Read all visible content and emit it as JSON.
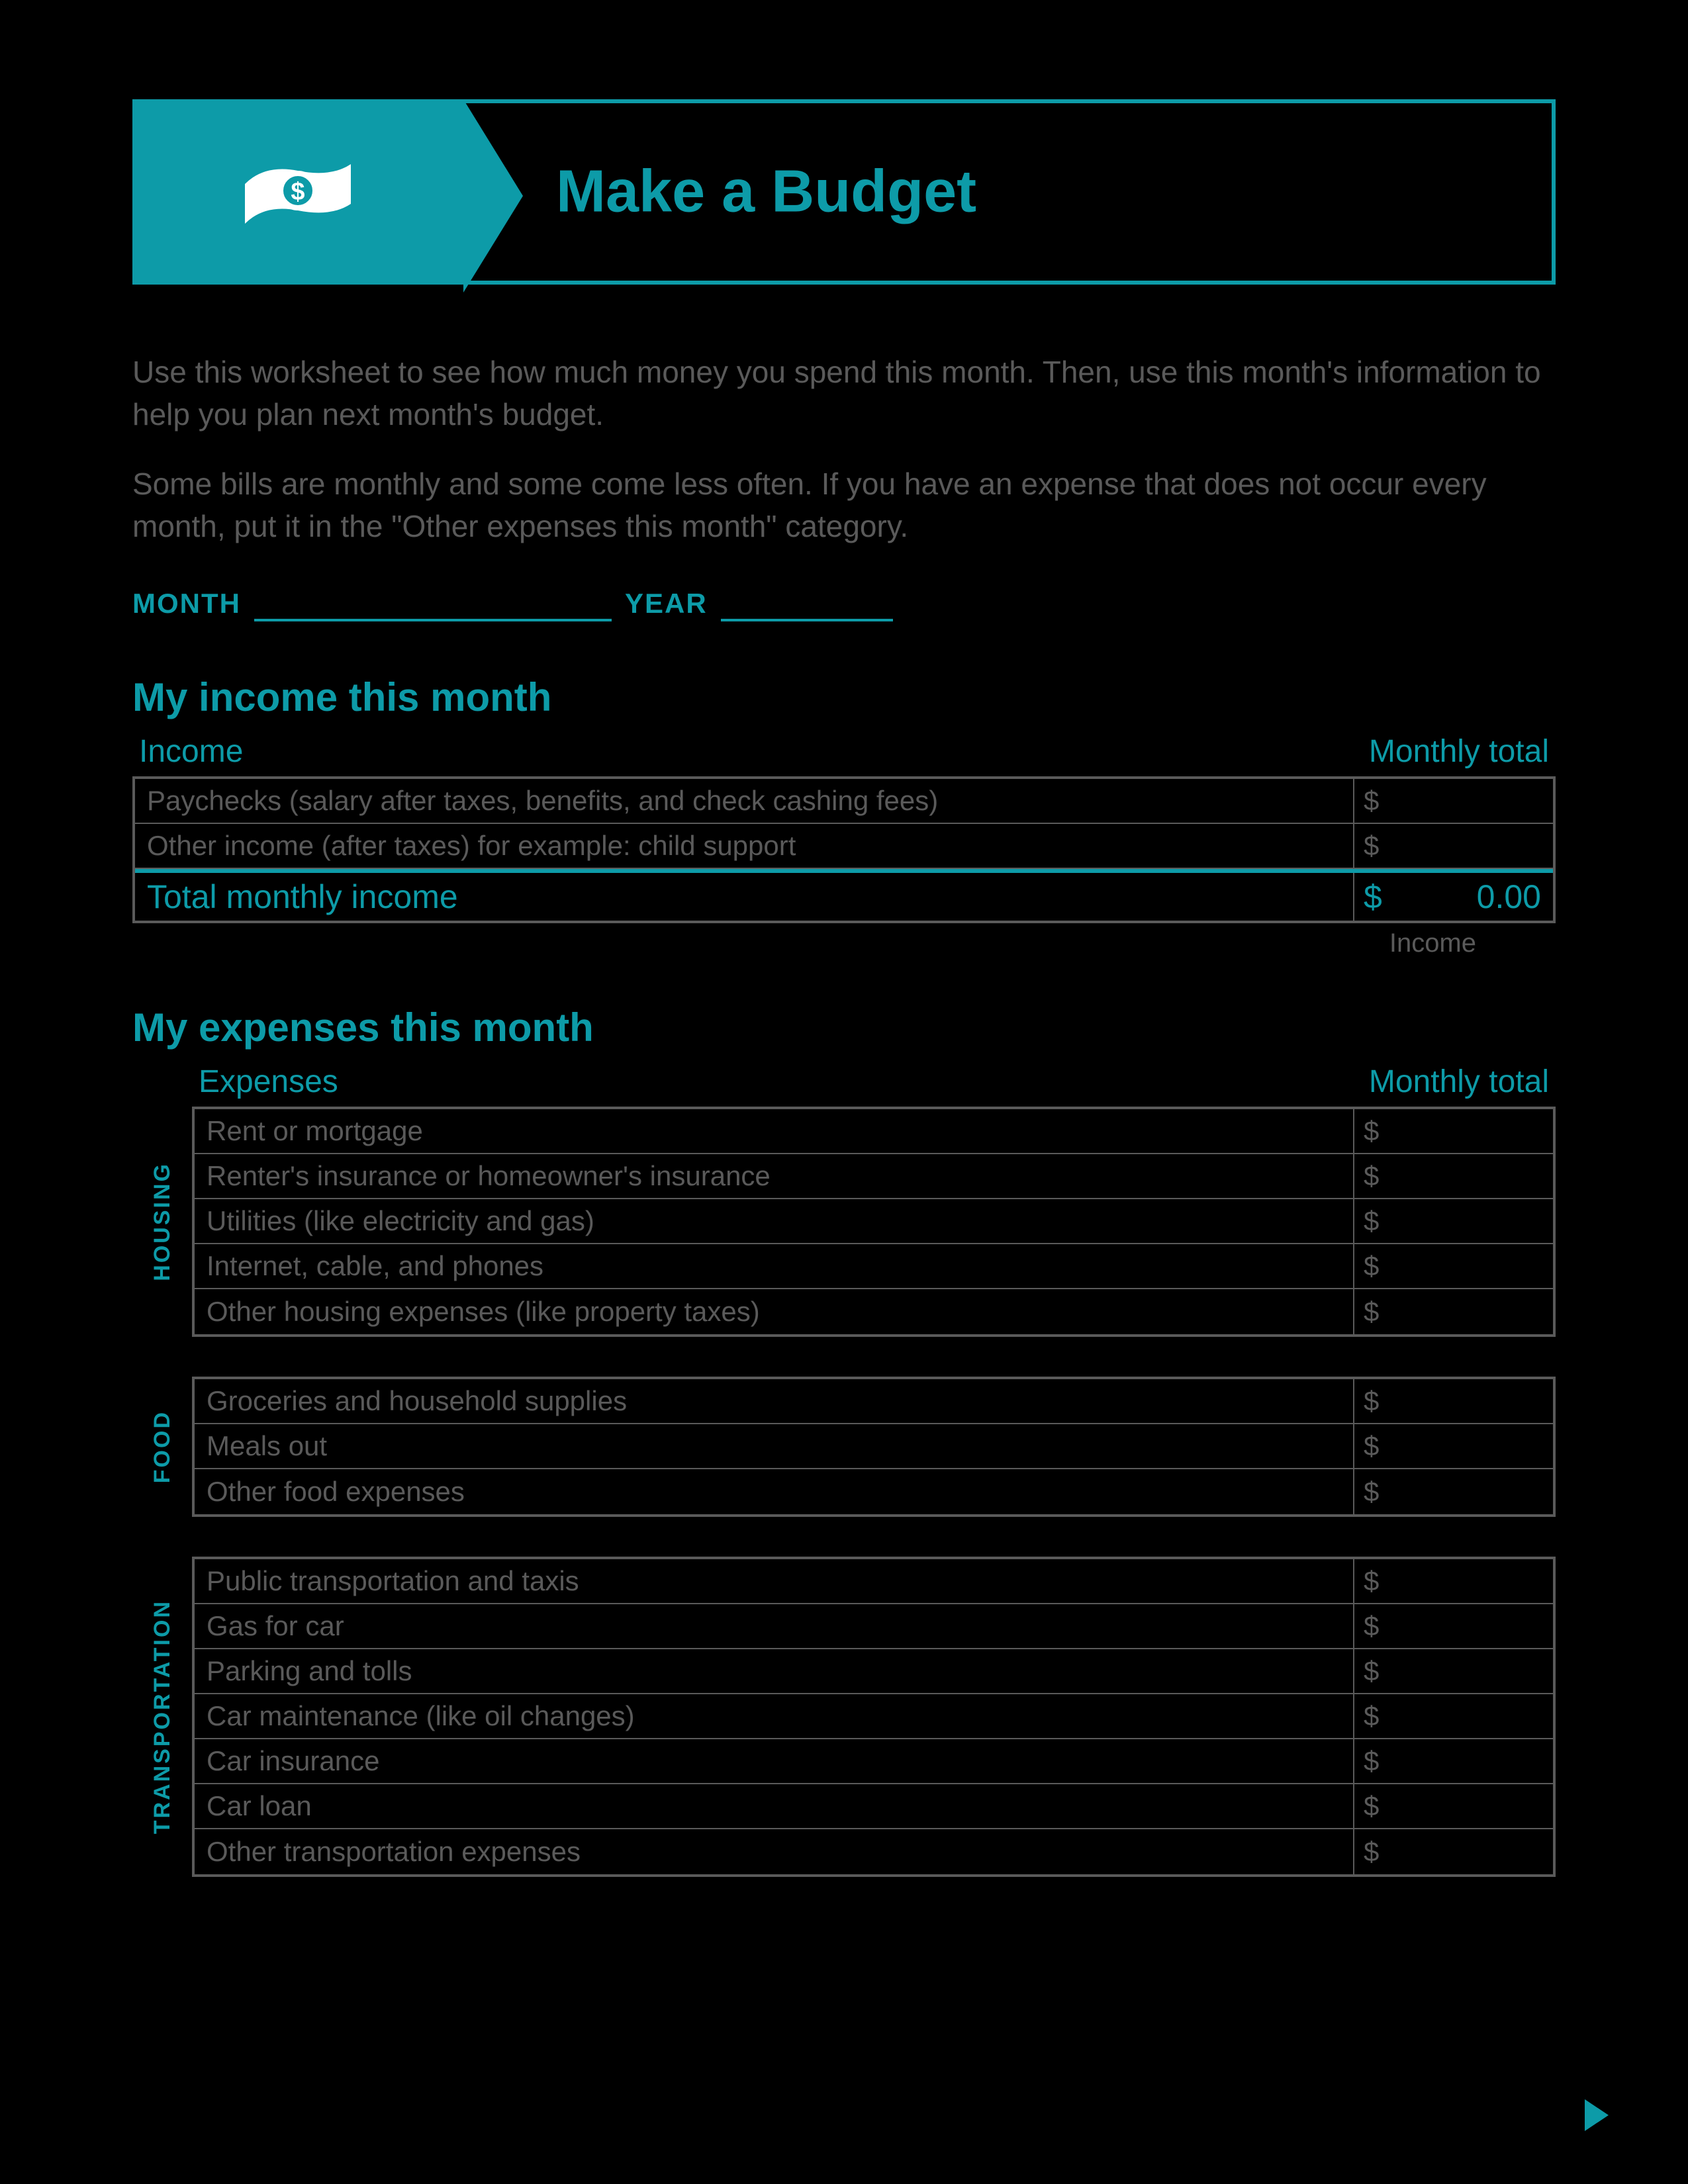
{
  "colors": {
    "accent": "#0d9ba8",
    "bg": "#000000",
    "muted": "#5a5a5a"
  },
  "banner": {
    "title": "Make a Budget"
  },
  "intro": {
    "p1": "Use this worksheet to see how much money you spend this month. Then, use this month's information to help you plan next month's budget.",
    "p2": "Some bills are monthly and some come less often. If you have an expense that does not occur every month, put it in the \"Other expenses this month\" category."
  },
  "date": {
    "month_label": "MONTH",
    "year_label": "YEAR",
    "month_value": "",
    "year_value": ""
  },
  "income": {
    "section_title": "My income this month",
    "header_left": "Income",
    "header_right": "Monthly total",
    "rows": [
      {
        "label": "Paychecks (salary after taxes, benefits, and check cashing fees)",
        "value": ""
      },
      {
        "label": "Other income (after taxes) for example: child support",
        "value": ""
      }
    ],
    "total_label": "Total monthly income",
    "total_value": "0.00",
    "footnote": "Income"
  },
  "expenses": {
    "section_title": "My expenses this month",
    "header_left": "Expenses",
    "header_right": "Monthly total",
    "groups": [
      {
        "category": "HOUSING",
        "rows": [
          {
            "label": "Rent or mortgage"
          },
          {
            "label": "Renter's insurance or homeowner's insurance"
          },
          {
            "label": "Utilities (like electricity and gas)"
          },
          {
            "label": "Internet, cable, and phones"
          },
          {
            "label": "Other housing expenses (like property taxes)"
          }
        ]
      },
      {
        "category": "FOOD",
        "rows": [
          {
            "label": "Groceries and household supplies"
          },
          {
            "label": "Meals out"
          },
          {
            "label": "Other food expenses"
          }
        ]
      },
      {
        "category": "TRANSPORTATION",
        "rows": [
          {
            "label": "Public transportation and taxis"
          },
          {
            "label": "Gas for car"
          },
          {
            "label": "Parking and tolls"
          },
          {
            "label": "Car maintenance (like oil changes)"
          },
          {
            "label": "Car insurance"
          },
          {
            "label": "Car loan"
          },
          {
            "label": "Other transportation expenses"
          }
        ]
      }
    ]
  },
  "currency_symbol": "$"
}
